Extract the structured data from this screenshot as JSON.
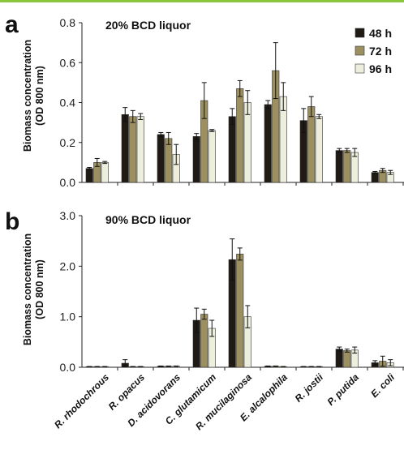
{
  "colors": {
    "s48": "#1f1a14",
    "s72": "#9c9060",
    "s96": "#eeeedd",
    "border": "#333333",
    "accent_line": "#8cc63f"
  },
  "y_axis_label_line1": "Biomass concentration",
  "y_axis_label_line2": "(OD 800 nm)",
  "chart_data": [
    {
      "type": "bar",
      "panel_label": "a",
      "title": "20% BCD liquor",
      "ylabel": "Biomass concentration (OD 800 nm)",
      "ylim": [
        0,
        0.8
      ],
      "yticks": [
        "0.0",
        "0.2",
        "0.4",
        "0.6",
        "0.8"
      ],
      "categories": [
        "R. rhodochrous",
        "R. opacus",
        "D. acidovorans",
        "C. glutamicum",
        "R. mucilaginosa",
        "E. alcalophila",
        "R. jostii",
        "P. putida",
        "E. coli"
      ],
      "series": [
        {
          "name": "48 h",
          "values": [
            0.07,
            0.34,
            0.24,
            0.23,
            0.33,
            0.39,
            0.31,
            0.16,
            0.05
          ],
          "errors": [
            0.005,
            0.035,
            0.01,
            0.015,
            0.04,
            0.02,
            0.06,
            0.01,
            0.005
          ]
        },
        {
          "name": "72 h",
          "values": [
            0.1,
            0.33,
            0.22,
            0.41,
            0.47,
            0.56,
            0.38,
            0.16,
            0.06
          ],
          "errors": [
            0.02,
            0.03,
            0.03,
            0.09,
            0.04,
            0.14,
            0.05,
            0.01,
            0.01
          ]
        },
        {
          "name": "96 h",
          "values": [
            0.1,
            0.33,
            0.14,
            0.26,
            0.4,
            0.43,
            0.33,
            0.15,
            0.05
          ],
          "errors": [
            0.005,
            0.015,
            0.05,
            0.005,
            0.06,
            0.07,
            0.01,
            0.02,
            0.01
          ]
        }
      ],
      "legend": "top-right",
      "grid": false
    },
    {
      "type": "bar",
      "panel_label": "b",
      "title": "90% BCD liquor",
      "ylabel": "Biomass concentration (OD 800 nm)",
      "ylim": [
        0,
        3.0
      ],
      "yticks": [
        "0.0",
        "1.0",
        "2.0",
        "3.0"
      ],
      "categories": [
        "R. rhodochrous",
        "R. opacus",
        "D. acidovorans",
        "C. glutamicum",
        "R. mucilaginosa",
        "E. alcalophila",
        "R. jostii",
        "P. putida",
        "E. coli"
      ],
      "series": [
        {
          "name": "48 h",
          "values": [
            0.01,
            0.08,
            0.02,
            0.93,
            2.13,
            0.02,
            0.01,
            0.36,
            0.09
          ],
          "errors": [
            0.005,
            0.07,
            0.005,
            0.24,
            0.41,
            0.005,
            0.005,
            0.04,
            0.04
          ]
        },
        {
          "name": "72 h",
          "values": [
            0.01,
            0.01,
            0.02,
            1.05,
            2.24,
            0.02,
            0.01,
            0.33,
            0.12
          ],
          "errors": [
            0.005,
            0.005,
            0.005,
            0.1,
            0.12,
            0.005,
            0.005,
            0.03,
            0.1
          ]
        },
        {
          "name": "96 h",
          "values": [
            0.01,
            0.01,
            0.02,
            0.77,
            1.0,
            0.01,
            0.01,
            0.34,
            0.09
          ],
          "errors": [
            0.005,
            0.005,
            0.005,
            0.16,
            0.22,
            0.005,
            0.005,
            0.06,
            0.06
          ]
        }
      ],
      "grid": false
    }
  ]
}
